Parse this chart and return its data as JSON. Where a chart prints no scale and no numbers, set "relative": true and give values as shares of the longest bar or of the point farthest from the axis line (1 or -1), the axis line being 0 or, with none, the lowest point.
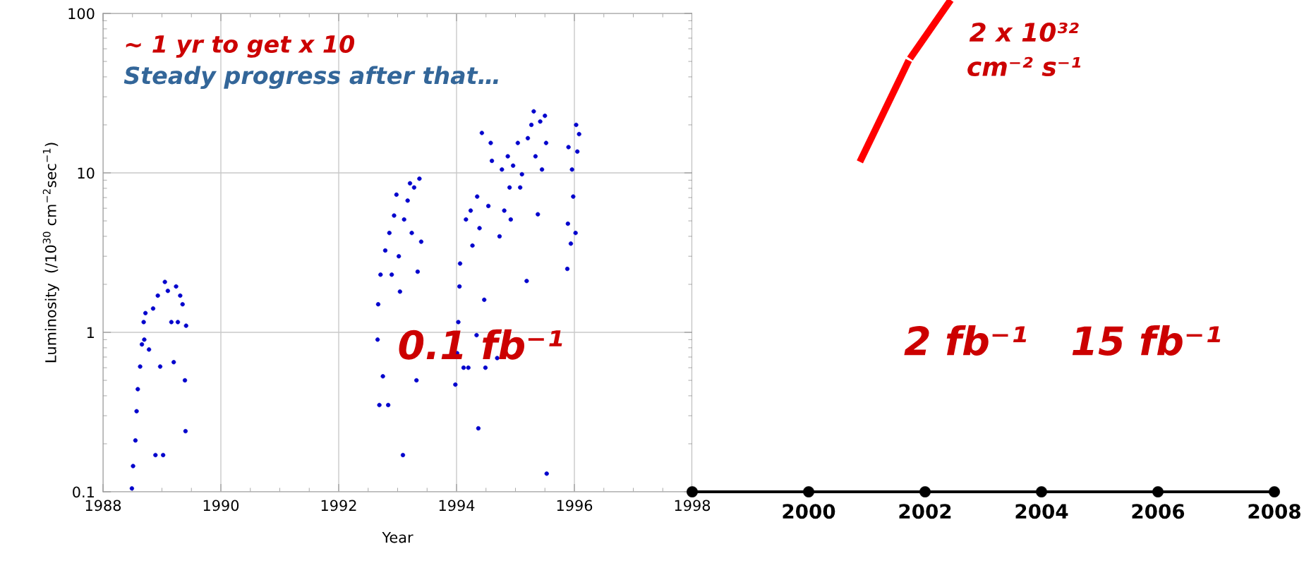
{
  "chart_data": [
    {
      "type": "scatter",
      "xlabel": "Year",
      "ylabel": "Luminosity  (/10$^{30}$ cm$^{−2}$sec$^{−1}$)",
      "log": "y",
      "grid": true,
      "marker": "circle",
      "xlim": [
        1988,
        1998
      ],
      "xticks": [
        1988,
        1990,
        1992,
        1994,
        1996,
        1998
      ],
      "ylim": [
        0.1,
        100
      ],
      "yticks": [
        0.1,
        1,
        10,
        100
      ],
      "annotations": [
        "~ 1 yr to get x 10",
        "Steady progress after that…",
        "0.1 fb⁻¹"
      ],
      "series": [
        {
          "color": "#0000cc",
          "x": [
            1988.49,
            1988.51,
            1988.55,
            1988.57,
            1988.59,
            1988.63,
            1988.66,
            1988.69,
            1988.7,
            1988.72,
            1988.78,
            1988.85,
            1988.89,
            1988.93,
            1988.97,
            1989.02,
            1989.05,
            1989.1,
            1989.16,
            1989.2,
            1989.24,
            1989.27,
            1989.31,
            1989.35,
            1989.39,
            1989.4,
            1989.41,
            1992.66,
            1992.67,
            1992.69,
            1992.71,
            1992.75,
            1992.79,
            1992.84,
            1992.86,
            1992.9,
            1992.94,
            1992.98,
            1993.02,
            1993.04,
            1993.09,
            1993.11,
            1993.17,
            1993.21,
            1993.24,
            1993.28,
            1993.32,
            1993.34,
            1993.37,
            1993.4,
            1993.98,
            1994.01,
            1994.03,
            1994.05,
            1994.06,
            1994.12,
            1994.16,
            1994.2,
            1994.24,
            1994.27,
            1994.34,
            1994.35,
            1994.37,
            1994.39,
            1994.43,
            1994.47,
            1994.49,
            1994.54,
            1994.58,
            1994.6,
            1994.69,
            1994.73,
            1994.77,
            1994.81,
            1994.87,
            1994.9,
            1994.92,
            1994.96,
            1995.04,
            1995.08,
            1995.11,
            1995.19,
            1995.21,
            1995.27,
            1995.31,
            1995.34,
            1995.38,
            1995.42,
            1995.45,
            1995.5,
            1995.52,
            1995.53,
            1995.88,
            1995.89,
            1995.9,
            1995.94,
            1995.96,
            1995.98,
            1996.02,
            1996.03,
            1996.05,
            1996.08
          ],
          "values": [
            0.105,
            0.145,
            0.21,
            0.32,
            0.44,
            0.61,
            0.84,
            1.16,
            0.9,
            1.32,
            0.78,
            1.41,
            0.17,
            1.7,
            0.61,
            0.17,
            2.07,
            1.82,
            1.16,
            0.65,
            1.94,
            1.16,
            1.7,
            1.5,
            0.5,
            0.24,
            1.1,
            0.9,
            1.5,
            0.35,
            2.3,
            0.53,
            3.26,
            0.35,
            4.2,
            2.3,
            5.4,
            7.3,
            3.0,
            1.8,
            0.17,
            5.1,
            6.7,
            8.6,
            4.2,
            8.1,
            0.5,
            2.4,
            9.2,
            3.7,
            0.47,
            0.74,
            1.16,
            1.94,
            2.7,
            0.6,
            5.1,
            0.6,
            5.8,
            3.5,
            0.96,
            7.1,
            0.25,
            4.5,
            17.8,
            1.6,
            0.6,
            6.2,
            15.4,
            11.9,
            0.69,
            4.0,
            10.5,
            5.8,
            12.7,
            8.1,
            5.1,
            11.1,
            15.4,
            8.1,
            9.8,
            2.1,
            16.5,
            20,
            24.3,
            12.7,
            5.5,
            21,
            10.5,
            22.8,
            15.4,
            0.13,
            2.5,
            4.8,
            14.5,
            3.6,
            10.5,
            7.1,
            4.2,
            20,
            13.6,
            17.5
          ]
        }
      ]
    },
    {
      "type": "line",
      "relative": true,
      "tick_labels": "x",
      "xlim": [
        1998,
        2008
      ],
      "xticks": [
        {
          "value": 1998,
          "label": null
        },
        2000,
        2002,
        2004,
        2006,
        2008
      ],
      "annotations": [
        "2 x 10³²",
        "cm⁻² s⁻¹",
        "2 fb⁻¹",
        "15 fb⁻¹"
      ],
      "series": [
        {
          "color": "#ff0000",
          "x": [
            2000.88,
            2001.72
          ],
          "values": [
            0.671,
            0.877
          ]
        },
        {
          "color": "#ff0000",
          "x": [
            2001.74,
            2002.44
          ],
          "values": [
            0.881,
            1.0
          ]
        },
        {
          "type": "scatter",
          "marker": "circle",
          "color": "#000000",
          "x": [
            1998,
            2000,
            2002,
            2004,
            2006,
            2008
          ],
          "values": [
            0,
            0,
            0,
            0,
            0,
            0
          ]
        }
      ]
    }
  ]
}
